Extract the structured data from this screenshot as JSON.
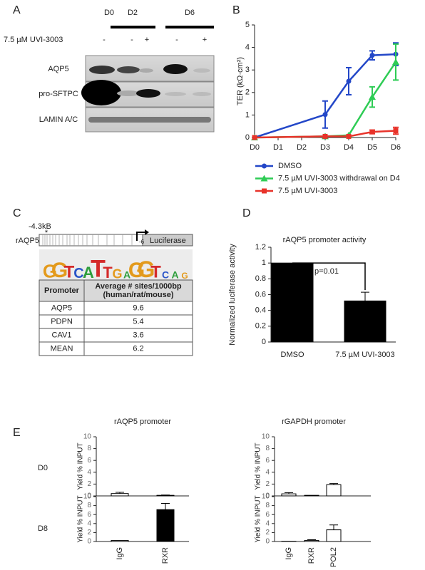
{
  "panel_labels": [
    "A",
    "B",
    "C",
    "D",
    "E"
  ],
  "blot": {
    "days": [
      "D0",
      "D2",
      "D6"
    ],
    "treatment": "7.5 µM UVI-3003",
    "signs": [
      "-",
      "-",
      "+",
      "-",
      "+"
    ],
    "rows": [
      "AQP5",
      "pro-SFTPC",
      "LAMIN A/C"
    ]
  },
  "promoter": {
    "name": "rAQP5",
    "site": "-4.3kB",
    "star": "*",
    "tss": "-6",
    "reporter": "Luciferase",
    "motif": [
      "G",
      "G",
      "T",
      "C",
      "A",
      "T",
      "T",
      "G",
      "A",
      "G",
      "G",
      "T",
      "C",
      "A",
      "G"
    ],
    "table": {
      "header": [
        "Promoter",
        [
          "Average # sites/1000bp",
          "(human/rat/mouse)"
        ]
      ],
      "rows": [
        [
          "AQP5",
          "9.6"
        ],
        [
          "PDPN",
          "5.4"
        ],
        [
          "CAV1",
          "3.6"
        ],
        [
          "MEAN",
          "6.2"
        ]
      ]
    }
  },
  "chart_data": [
    {
      "type": "line",
      "ylabel": "TER (kΩ·cm²)",
      "categories": [
        "D0",
        "D1",
        "D2",
        "D3",
        "D4",
        "D5",
        "D6"
      ],
      "ylim": [
        0,
        5
      ],
      "yticks": [
        0,
        1,
        2,
        3,
        4,
        5
      ],
      "series": [
        {
          "name": "DMSO",
          "color": "#2347c8",
          "marker": "circle",
          "x": [
            "D0",
            "D3",
            "D4",
            "D5",
            "D6"
          ],
          "values": [
            0,
            1.02,
            2.5,
            3.65,
            3.7
          ],
          "errors": [
            null,
            0.6,
            0.6,
            0.2,
            0.5
          ]
        },
        {
          "name": "7.5 µM UVI-3003 withdrawal on D4",
          "color": "#2ecc55",
          "marker": "triangle",
          "x": [
            "D0",
            "D3",
            "D4",
            "D5",
            "D6"
          ],
          "values": [
            0,
            0.05,
            0.1,
            1.8,
            3.35
          ],
          "errors": [
            null,
            null,
            null,
            0.45,
            0.8
          ]
        },
        {
          "name": "7.5 µM UVI-3003",
          "color": "#e8332a",
          "marker": "square",
          "x": [
            "D0",
            "D3",
            "D4",
            "D5",
            "D6"
          ],
          "values": [
            0,
            0.05,
            0.05,
            0.25,
            0.3
          ],
          "errors": [
            null,
            null,
            null,
            0.08,
            0.15
          ]
        }
      ]
    },
    {
      "type": "bar",
      "title": "rAQP5 promoter activity",
      "ylabel": "Normalized luciferase activity",
      "annotation": "p=0.01",
      "categories": [
        "DMSO",
        "7.5 µM UVI-3003"
      ],
      "values": [
        1,
        0.52
      ],
      "errors": [
        null,
        0.11
      ],
      "colors": [
        "#000000",
        "#000000"
      ],
      "ylim": [
        0,
        1.2
      ],
      "yticks": [
        0,
        0.2,
        0.4,
        0.6,
        0.8,
        1,
        1.2
      ]
    },
    {
      "type": "bar",
      "title": "rAQP5 promoter",
      "row_label": "D0",
      "ylabel": "Yield % INPUT",
      "categories": [
        null,
        null
      ],
      "values": [
        0.4,
        0.1
      ],
      "errors": [
        0.2,
        0.05
      ],
      "colors": [
        "#ffffff",
        "#ffffff"
      ],
      "ylim": [
        0,
        10
      ],
      "yticks": [
        0,
        2,
        4,
        6,
        8,
        10
      ]
    },
    {
      "type": "bar",
      "row_label": "D8",
      "ylabel": "Yield % INPUT",
      "categories": [
        "IgG",
        "RXR"
      ],
      "values": [
        0.25,
        7.1
      ],
      "errors": [
        null,
        1.4
      ],
      "colors": [
        "#ffffff",
        "#000000"
      ],
      "ylim": [
        0,
        10
      ],
      "yticks": [
        0,
        2,
        4,
        6,
        8,
        10
      ]
    },
    {
      "type": "bar",
      "title": "rGAPDH promoter",
      "ylabel": "Yield % INPUT",
      "categories": [
        null,
        null,
        null
      ],
      "values": [
        0.35,
        0.1,
        1.9
      ],
      "errors": [
        0.2,
        null,
        0.2
      ],
      "colors": [
        "#ffffff",
        "#ffffff",
        "#ffffff"
      ],
      "ylim": [
        0,
        10
      ],
      "yticks": [
        0,
        2,
        4,
        6,
        8,
        10
      ]
    },
    {
      "type": "bar",
      "ylabel": "Yield % INPUT",
      "categories": [
        "IgG",
        "RXR",
        "POL2"
      ],
      "values": [
        0.05,
        0.25,
        2.6
      ],
      "errors": [
        null,
        0.15,
        1.1
      ],
      "colors": [
        "#ffffff",
        "#ffffff",
        "#ffffff"
      ],
      "ylim": [
        0,
        10
      ],
      "yticks": [
        0,
        2,
        4,
        6,
        8,
        10
      ]
    }
  ]
}
